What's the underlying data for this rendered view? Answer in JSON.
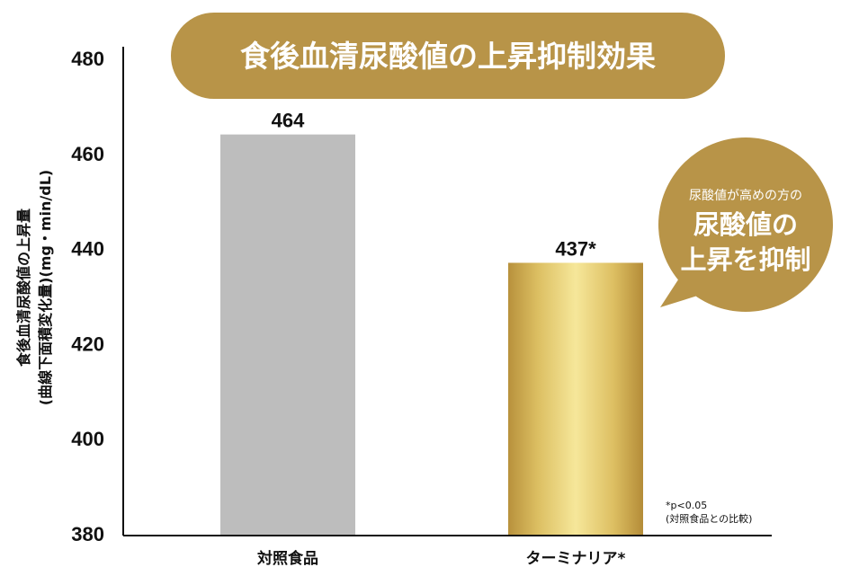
{
  "chart_data": {
    "type": "bar",
    "title": "食後血清尿酸値の上昇抑制効果",
    "ylabel_line1": "食後血清尿酸値の上昇量",
    "ylabel_line2": "(曲線下面積変化量)(mg・min/dL)",
    "ylim": [
      380,
      480
    ],
    "yticks": [
      380,
      400,
      420,
      440,
      460,
      480
    ],
    "categories": [
      "対照食品",
      "ターミナリア*"
    ],
    "values": [
      464,
      437
    ],
    "value_labels": [
      "464",
      "437*"
    ],
    "grid": false,
    "colors": {
      "control": "#bdbdbd",
      "terminalia": "#e3c56a",
      "accent": "#b89448"
    },
    "callout": {
      "line1": "尿酸値が高めの方の",
      "line2": "尿酸値の",
      "line3": "上昇を抑制"
    },
    "footnote": {
      "line1": "*p<0.05",
      "line2": "(対照食品との比較)"
    }
  }
}
